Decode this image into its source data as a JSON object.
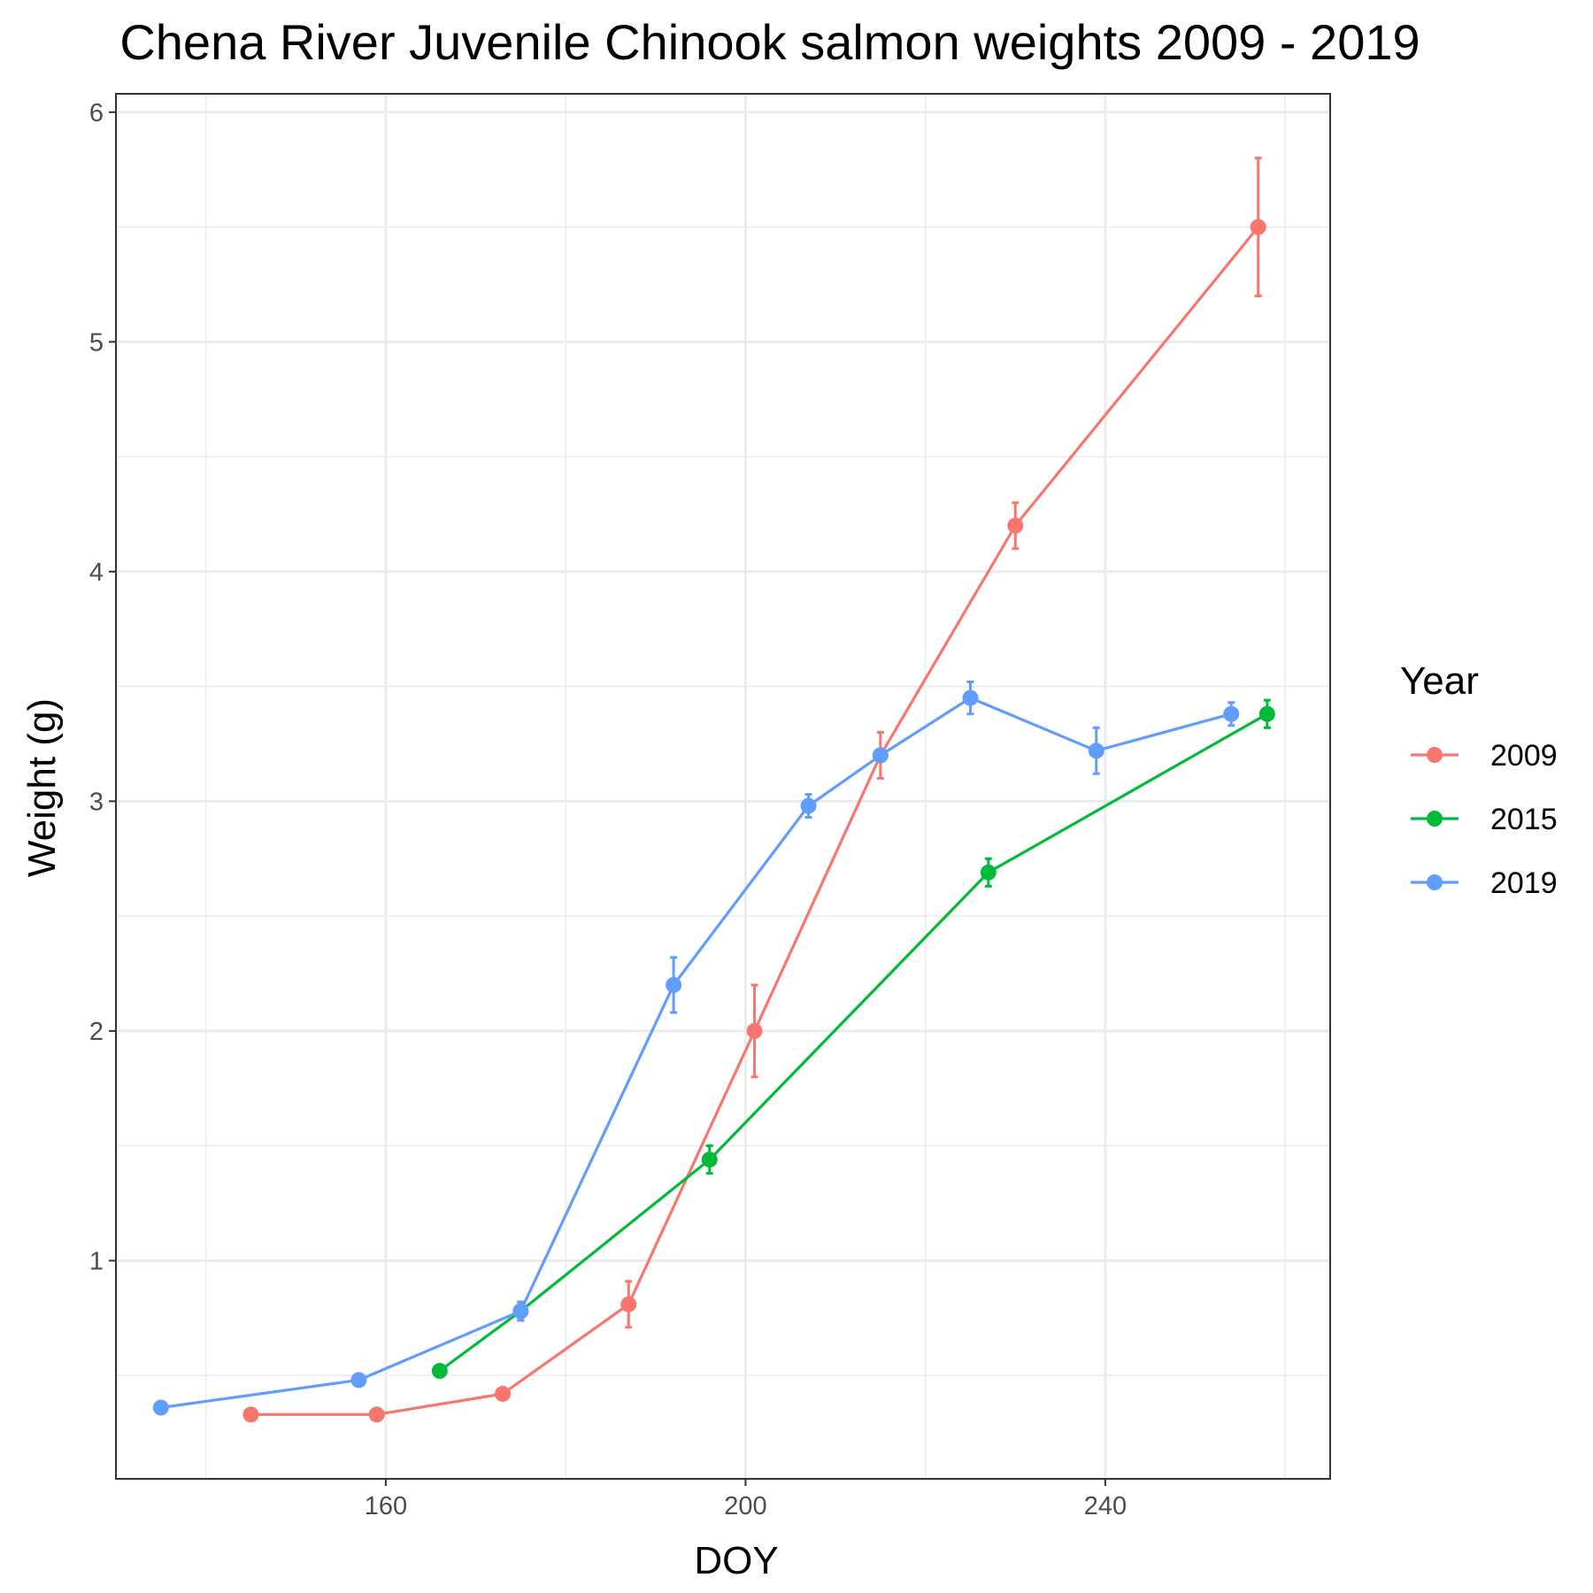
{
  "chart_data": {
    "type": "line",
    "title": "Chena River Juvenile Chinook salmon weights 2009 - 2019",
    "xlabel": "DOY",
    "ylabel": "Weight (g)",
    "xlim": [
      130,
      265
    ],
    "ylim": [
      0.05,
      6.08
    ],
    "x_ticks": [
      160,
      200,
      240
    ],
    "x_tick_labels": [
      "160",
      "200",
      "240"
    ],
    "y_ticks": [
      1,
      2,
      3,
      4,
      5,
      6
    ],
    "y_tick_labels": [
      "1",
      "2",
      "3",
      "4",
      "5",
      "6"
    ],
    "grid": true,
    "error_bars": true,
    "legend": {
      "title": "Year",
      "placement": "right"
    },
    "series": [
      {
        "name": "2009",
        "color": "#F8766D",
        "points": [
          {
            "x": 145,
            "y": 0.33
          },
          {
            "x": 159,
            "y": 0.33
          },
          {
            "x": 173,
            "y": 0.42
          },
          {
            "x": 187,
            "y": 0.81,
            "err": 0.1
          },
          {
            "x": 201,
            "y": 2.0,
            "err": 0.2
          },
          {
            "x": 215,
            "y": 3.2,
            "err": 0.1
          },
          {
            "x": 230,
            "y": 4.2,
            "err": 0.1
          },
          {
            "x": 257,
            "y": 5.5,
            "err": 0.3
          }
        ]
      },
      {
        "name": "2015",
        "color": "#00BA38",
        "points": [
          {
            "x": 166,
            "y": 0.52
          },
          {
            "x": 175,
            "y": 0.78,
            "err": 0.04
          },
          {
            "x": 196,
            "y": 1.44,
            "err": 0.06
          },
          {
            "x": 227,
            "y": 2.69,
            "err": 0.06
          },
          {
            "x": 258,
            "y": 3.38,
            "err": 0.06
          }
        ]
      },
      {
        "name": "2019",
        "color": "#619CFF",
        "points": [
          {
            "x": 135,
            "y": 0.36
          },
          {
            "x": 157,
            "y": 0.48
          },
          {
            "x": 175,
            "y": 0.78,
            "err": 0.04
          },
          {
            "x": 192,
            "y": 2.2,
            "err": 0.12
          },
          {
            "x": 207,
            "y": 2.98,
            "err": 0.05
          },
          {
            "x": 215,
            "y": 3.2
          },
          {
            "x": 225,
            "y": 3.45,
            "err": 0.07
          },
          {
            "x": 239,
            "y": 3.22,
            "err": 0.1
          },
          {
            "x": 254,
            "y": 3.38,
            "err": 0.05
          }
        ]
      }
    ]
  }
}
